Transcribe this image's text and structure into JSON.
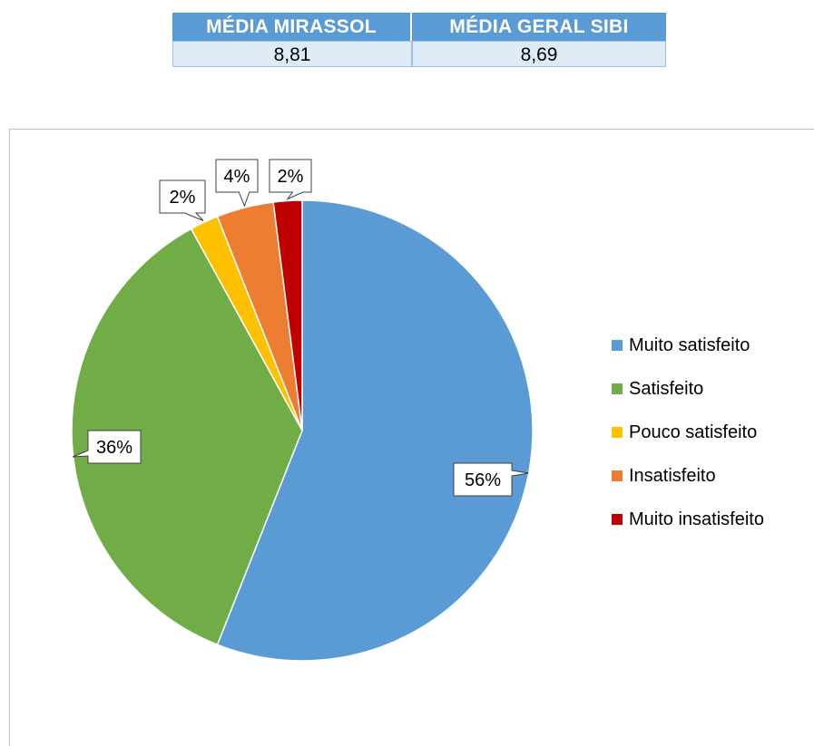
{
  "summary": {
    "headers": [
      "MÉDIA MIRASSOL",
      "MÉDIA GERAL SIBI"
    ],
    "values": [
      "8,81",
      "8,69"
    ]
  },
  "chart_data": {
    "type": "pie",
    "title": "",
    "slices": [
      {
        "label": "Muito satisfeito",
        "value": 56,
        "display": "56%",
        "color": "#5b9bd5"
      },
      {
        "label": "Satisfeito",
        "value": 36,
        "display": "36%",
        "color": "#70ad47"
      },
      {
        "label": "Pouco satisfeito",
        "value": 2,
        "display": "2%",
        "color": "#ffc000"
      },
      {
        "label": "Insatisfeito",
        "value": 4,
        "display": "4%",
        "color": "#ed7d31"
      },
      {
        "label": "Muito insatisfeito",
        "value": 2,
        "display": "2%",
        "color": "#c00000"
      }
    ],
    "legend_position": "right"
  }
}
